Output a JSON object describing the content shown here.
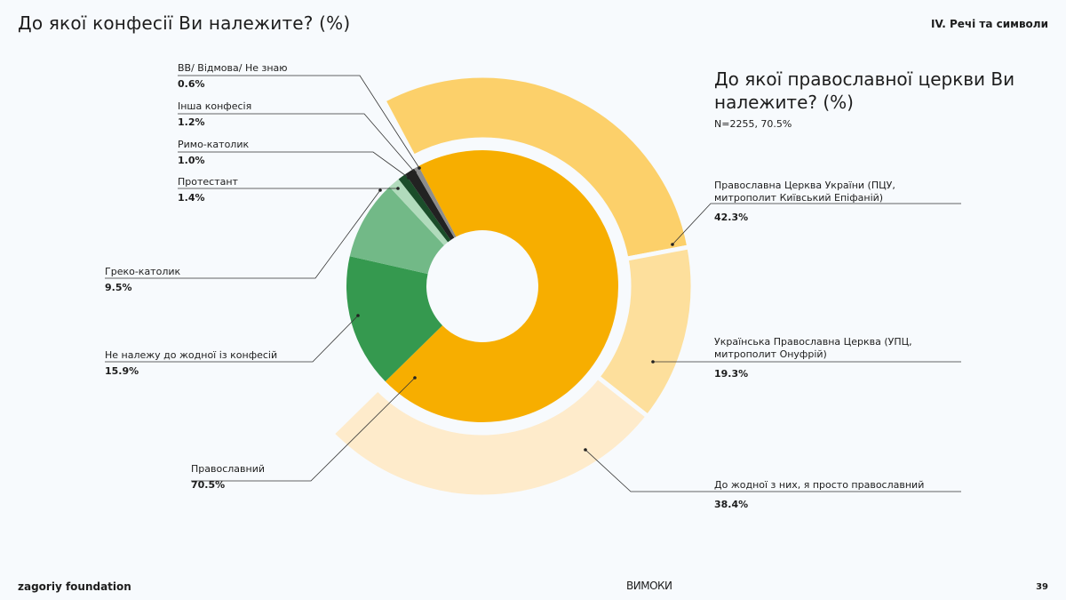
{
  "header": {
    "title": "До якої конфесії Ви належите? (%)",
    "section": "IV. Речі та символи"
  },
  "footer": {
    "brand": "zagoriy foundation",
    "logo": "ВИМОКИ",
    "page": "39"
  },
  "chart_data": [
    {
      "type": "pie",
      "title": "До якої конфесії Ви належите? (%)",
      "slices": [
        {
          "label": "Православний",
          "value": 70.5,
          "value_label": "70.5%",
          "color": "#F7AE00"
        },
        {
          "label": "Не належу до жодної із конфесій",
          "value": 15.9,
          "value_label": "15.9%",
          "color": "#35994F"
        },
        {
          "label": "Греко-католик",
          "value": 9.5,
          "value_label": "9.5%",
          "color": "#72B987"
        },
        {
          "label": "Протестант",
          "value": 1.4,
          "value_label": "1.4%",
          "color": "#B1DBBC"
        },
        {
          "label": "Римо-католик",
          "value": 1.0,
          "value_label": "1.0%",
          "color": "#1B4D2A"
        },
        {
          "label": "Інша конфесія",
          "value": 1.2,
          "value_label": "1.2%",
          "color": "#222222"
        },
        {
          "label": "ВВ/ Відмова/ Не знаю",
          "value": 0.6,
          "value_label": "0.6%",
          "color": "#8C8C8C"
        }
      ]
    },
    {
      "type": "pie",
      "title": "До якої православної церкви Ви належите? (%)",
      "note": "N=2255, 70.5%",
      "slices": [
        {
          "label": "Православна Церква України (ПЦУ, митрополит Київський Епіфаній)",
          "value": 42.3,
          "value_label": "42.3%",
          "color": "#FCD06A"
        },
        {
          "label": "Українська Православна Церква (УПЦ, митрополит Онуфрій)",
          "value": 19.3,
          "value_label": "19.3%",
          "color": "#FDDF9C"
        },
        {
          "label": "До жодної з них, я просто православний",
          "value": 38.4,
          "value_label": "38.4%",
          "color": "#FEEBCB"
        }
      ]
    }
  ]
}
